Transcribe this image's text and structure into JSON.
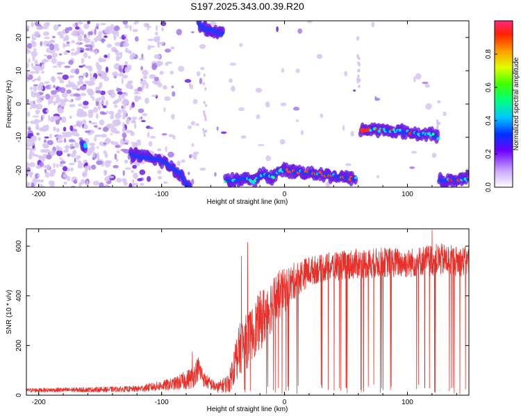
{
  "figure_title": "S197.2025.343.00.39.R20",
  "colors": {
    "snr_line": "#e8302a",
    "spectro_faint": "#d7c4f2",
    "spectro_mid": "#a67be6",
    "spectro_strong": "#6a1de0",
    "ridge": "#1a7cff"
  },
  "chart_data": [
    {
      "type": "heatmap",
      "title": "",
      "xlabel": "Height of straight line (km)",
      "ylabel": "Frequency (Hz)",
      "xlim": [
        -210,
        150
      ],
      "ylim": [
        -25,
        25
      ],
      "xticks": [
        -200,
        -100,
        0,
        100
      ],
      "yticks": [
        -20,
        -10,
        0,
        10,
        20
      ],
      "colorbar": {
        "label": "Normalized spectral amplitude",
        "range": [
          0,
          1
        ],
        "ticks": [
          "0.0",
          "0.2",
          "0.4",
          "0.6",
          "0.8"
        ],
        "colormap": "rainbow"
      },
      "ridges": [
        {
          "x": [
            -165,
            -162
          ],
          "y": [
            -12,
            -13
          ]
        },
        {
          "x": [
            -125,
            -115,
            -100,
            -92,
            -85,
            -80,
            -76
          ],
          "y": [
            -15,
            -16,
            -17,
            -19,
            -21,
            -24,
            -25
          ]
        },
        {
          "x": [
            -70,
            -65,
            -58,
            -50
          ],
          "y": [
            24,
            22.5,
            22,
            21
          ]
        },
        {
          "x": [
            -48,
            -40,
            -32,
            -25,
            -18,
            -10,
            -3,
            5,
            15,
            30,
            45,
            58
          ],
          "y": [
            -23,
            -23,
            -22,
            -23.5,
            -21,
            -22,
            -20,
            -20,
            -20.5,
            -21,
            -22,
            -22.5
          ]
        },
        {
          "x": [
            62,
            70,
            80,
            90,
            100,
            110,
            120,
            125
          ],
          "y": [
            -8,
            -7.5,
            -8,
            -8,
            -8.5,
            -9,
            -9,
            -10
          ]
        },
        {
          "x": [
            126,
            135,
            145,
            150
          ],
          "y": [
            -23,
            -23,
            -22.5,
            -22.5
          ]
        }
      ]
    },
    {
      "type": "line",
      "title": "",
      "xlabel": "Height of straight line (km)",
      "ylabel": "SNR (10 * v/v)",
      "xlim": [
        -210,
        150
      ],
      "ylim": [
        0,
        670
      ],
      "xticks": [
        -200,
        -100,
        0,
        100
      ],
      "yticks": [
        0,
        200,
        400,
        600
      ],
      "series": [
        {
          "envelope_x": [
            -210,
            -160,
            -120,
            -90,
            -75,
            -70,
            -65,
            -55,
            -45,
            -40,
            -35,
            -30,
            -25,
            -20,
            -15,
            -10,
            -5,
            0,
            10,
            20,
            30,
            40,
            50,
            60,
            70,
            80,
            90,
            100,
            110,
            120,
            130,
            140,
            150
          ],
          "envelope_y": [
            20,
            22,
            25,
            45,
            70,
            110,
            60,
            30,
            50,
            140,
            200,
            220,
            260,
            300,
            330,
            370,
            400,
            420,
            470,
            500,
            510,
            520,
            525,
            530,
            530,
            535,
            535,
            530,
            540,
            545,
            545,
            540,
            540
          ],
          "noise": [
            8,
            10,
            12,
            25,
            45,
            50,
            30,
            20,
            40,
            90,
            110,
            110,
            110,
            120,
            120,
            110,
            100,
            90,
            70,
            60,
            55,
            60,
            60,
            60,
            60,
            60,
            60,
            60,
            60,
            65,
            65,
            60,
            60
          ],
          "peaks": [
            {
              "x": -75,
              "y": 175
            },
            {
              "x": -35,
              "y": 560
            },
            {
              "x": -30,
              "y": 615
            },
            {
              "x": 120,
              "y": 665
            }
          ]
        }
      ]
    }
  ]
}
